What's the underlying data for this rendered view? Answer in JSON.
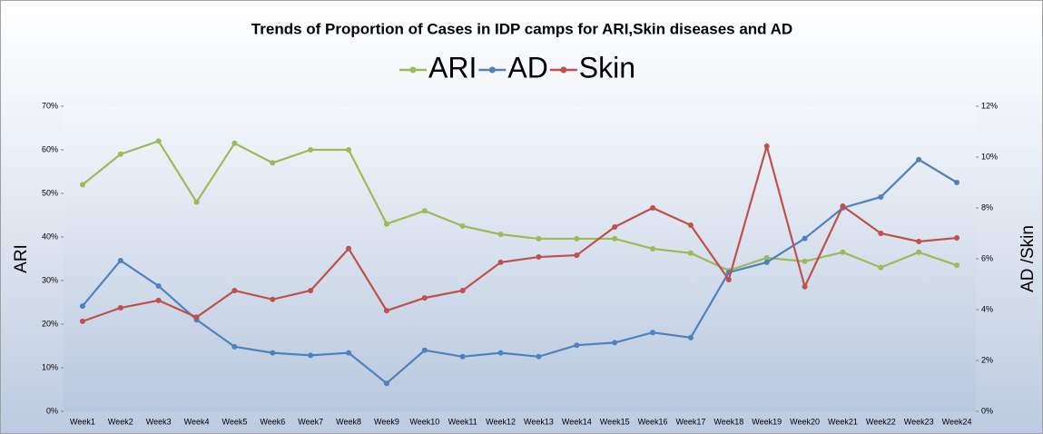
{
  "chart_data": {
    "type": "line",
    "title": "Trends of Proportion of Cases in IDP camps for ARI,Skin diseases and AD",
    "y_label": "ARI",
    "y2_label": "AD /Skin",
    "categories": [
      "Week1",
      "Week2",
      "Week3",
      "Week4",
      "Week5",
      "Week6",
      "Week7",
      "Week8",
      "Week9",
      "Week10",
      "Week11",
      "Week12",
      "Week13",
      "Week14",
      "Week15",
      "Week16",
      "Week17",
      "Week18",
      "Week19",
      "Week20",
      "Week21",
      "Week22",
      "Week23",
      "Week24"
    ],
    "series": [
      {
        "name": "ARI",
        "color": "#9bbb59",
        "values": [
          52,
          59,
          62,
          48,
          61.5,
          57,
          60,
          60,
          43,
          46,
          42.5,
          40.6,
          39.6,
          39.6,
          39.6,
          37.3,
          36.3,
          32.3,
          35.2,
          34.4,
          36.5,
          33,
          36.5,
          33.5
        ]
      },
      {
        "name": "AD",
        "color": "#4f81bd",
        "axis": "y2",
        "values": [
          4.14,
          5.93,
          4.93,
          3.6,
          2.54,
          2.3,
          2.2,
          2.3,
          1.1,
          2.4,
          2.15,
          2.3,
          2.15,
          2.6,
          2.7,
          3.1,
          2.9,
          5.46,
          5.86,
          6.8,
          8.0,
          8.43,
          9.9,
          9.0
        ]
      },
      {
        "name": "Skin",
        "color": "#c0504d",
        "axis": "y2",
        "values": [
          3.54,
          4.07,
          4.36,
          3.7,
          4.75,
          4.4,
          4.75,
          6.4,
          3.96,
          4.46,
          4.75,
          5.86,
          6.07,
          6.14,
          7.25,
          8.0,
          7.32,
          5.18,
          10.43,
          4.9,
          8.07,
          7.0,
          6.68,
          6.82
        ]
      }
    ],
    "ylim": [
      0,
      70
    ],
    "yticks": [
      {
        "value": 0,
        "label": "0%"
      },
      {
        "value": 10,
        "label": "10%"
      },
      {
        "value": 20,
        "label": "20%"
      },
      {
        "value": 30,
        "label": "30%"
      },
      {
        "value": 40,
        "label": "40%"
      },
      {
        "value": 50,
        "label": "50%"
      },
      {
        "value": 60,
        "label": "60%"
      },
      {
        "value": 70,
        "label": "70%"
      }
    ],
    "y2lim": [
      0,
      12
    ],
    "y2ticks": [
      {
        "value": 0,
        "label": "0%"
      },
      {
        "value": 2,
        "label": "2%"
      },
      {
        "value": 4,
        "label": "4%"
      },
      {
        "value": 6,
        "label": "6%"
      },
      {
        "value": 8,
        "label": "8%"
      },
      {
        "value": 10,
        "label": "10%"
      },
      {
        "value": 12,
        "label": "12%"
      }
    ],
    "legend": "top"
  }
}
